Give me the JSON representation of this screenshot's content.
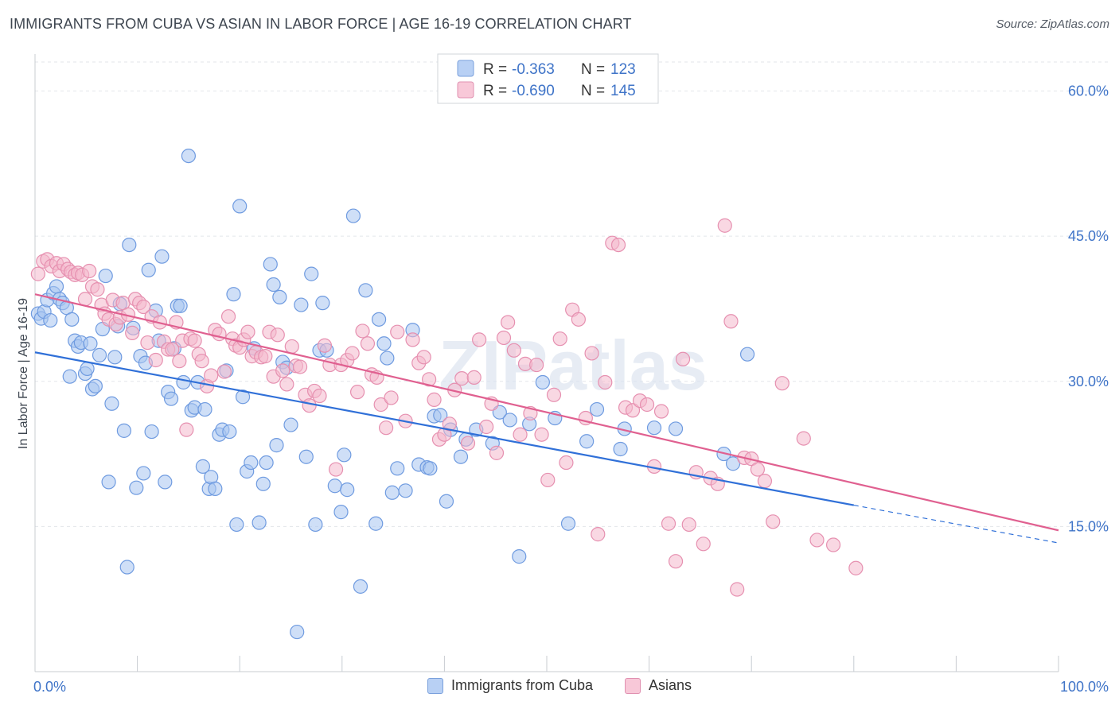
{
  "title": "IMMIGRANTS FROM CUBA VS ASIAN IN LABOR FORCE | AGE 16-19 CORRELATION CHART",
  "source": "Source: ZipAtlas.com",
  "watermark": "ZIPatlas",
  "colors": {
    "blue": "#3070d8",
    "blue_fill": "#a8c4f0",
    "pink": "#e06090",
    "pink_fill": "#f4b8cc",
    "axis_text": "#3f74c8"
  },
  "legend_box": [
    {
      "r_label": "R =",
      "r_value": "-0.363",
      "n_label": "N =",
      "n_value": "123"
    },
    {
      "r_label": "R =",
      "r_value": "-0.690",
      "n_label": "N =",
      "n_value": "145"
    }
  ],
  "chart_data": {
    "type": "scatter",
    "xlabel": "",
    "ylabel": "In Labor Force | Age 16-19",
    "xlim": [
      0,
      100
    ],
    "ylim": [
      0,
      63
    ],
    "x_tick_labels": [
      "0.0%",
      "100.0%"
    ],
    "y_ticks": [
      15,
      30,
      45,
      60
    ],
    "y_tick_labels": [
      "15.0%",
      "30.0%",
      "45.0%",
      "60.0%"
    ],
    "grid": true,
    "legend_position": "bottom",
    "series": [
      {
        "name": "Immigrants from Cuba",
        "color": "#3070d8",
        "trend": {
          "x0": 0,
          "y0": 33.0,
          "x1": 80,
          "y1": 17.2,
          "dash_to_x": 100,
          "dash_to_y": 13.3
        },
        "points": [
          [
            0.3,
            37
          ],
          [
            0.6,
            36.5
          ],
          [
            0.9,
            37.2
          ],
          [
            1.2,
            38.4
          ],
          [
            1.5,
            36.3
          ],
          [
            1.8,
            39.1
          ],
          [
            2.1,
            39.8
          ],
          [
            2.4,
            38.5
          ],
          [
            2.7,
            38.1
          ],
          [
            3.1,
            37.6
          ],
          [
            3.4,
            30.5
          ],
          [
            3.6,
            36.4
          ],
          [
            3.9,
            34.2
          ],
          [
            4.2,
            33.6
          ],
          [
            4.5,
            34.0
          ],
          [
            4.9,
            30.8
          ],
          [
            5.1,
            31.3
          ],
          [
            5.4,
            33.9
          ],
          [
            5.6,
            29.2
          ],
          [
            5.9,
            29.5
          ],
          [
            6.3,
            32.7
          ],
          [
            6.6,
            35.4
          ],
          [
            6.9,
            40.9
          ],
          [
            7.2,
            19.6
          ],
          [
            7.5,
            27.7
          ],
          [
            7.8,
            32.5
          ],
          [
            8.1,
            35.7
          ],
          [
            8.3,
            38.0
          ],
          [
            8.7,
            24.9
          ],
          [
            9.0,
            10.8
          ],
          [
            9.2,
            44.1
          ],
          [
            9.6,
            35.5
          ],
          [
            9.9,
            19.0
          ],
          [
            10.3,
            32.6
          ],
          [
            10.6,
            20.5
          ],
          [
            10.8,
            31.9
          ],
          [
            11.1,
            41.5
          ],
          [
            11.4,
            24.8
          ],
          [
            11.8,
            37.3
          ],
          [
            12.1,
            34.2
          ],
          [
            12.4,
            42.9
          ],
          [
            12.7,
            19.6
          ],
          [
            13.0,
            28.9
          ],
          [
            13.3,
            28.2
          ],
          [
            13.6,
            33.4
          ],
          [
            13.9,
            37.8
          ],
          [
            14.2,
            37.8
          ],
          [
            14.5,
            29.9
          ],
          [
            15.0,
            53.3
          ],
          [
            15.3,
            27.0
          ],
          [
            15.6,
            27.3
          ],
          [
            15.9,
            29.9
          ],
          [
            16.4,
            21.2
          ],
          [
            16.6,
            27.1
          ],
          [
            17.0,
            18.9
          ],
          [
            17.2,
            20.1
          ],
          [
            17.6,
            18.9
          ],
          [
            18.0,
            24.5
          ],
          [
            18.3,
            25.0
          ],
          [
            18.7,
            31.1
          ],
          [
            19.0,
            24.8
          ],
          [
            19.4,
            39.0
          ],
          [
            19.7,
            15.2
          ],
          [
            20.0,
            48.1
          ],
          [
            20.3,
            28.4
          ],
          [
            20.7,
            20.7
          ],
          [
            21.1,
            21.6
          ],
          [
            21.4,
            33.4
          ],
          [
            21.9,
            15.4
          ],
          [
            22.3,
            19.4
          ],
          [
            22.6,
            21.6
          ],
          [
            23.0,
            42.1
          ],
          [
            23.3,
            40.0
          ],
          [
            23.6,
            23.4
          ],
          [
            23.9,
            38.7
          ],
          [
            24.2,
            32.0
          ],
          [
            24.6,
            31.4
          ],
          [
            25.0,
            25.5
          ],
          [
            25.6,
            4.1
          ],
          [
            26.0,
            37.9
          ],
          [
            26.5,
            22.2
          ],
          [
            27.0,
            41.1
          ],
          [
            27.4,
            15.2
          ],
          [
            27.8,
            33.2
          ],
          [
            28.1,
            38.1
          ],
          [
            28.5,
            33.2
          ],
          [
            29.3,
            19.2
          ],
          [
            29.9,
            16.5
          ],
          [
            30.2,
            22.4
          ],
          [
            30.5,
            18.8
          ],
          [
            31.1,
            47.1
          ],
          [
            31.8,
            8.8
          ],
          [
            32.3,
            39.4
          ],
          [
            33.3,
            15.3
          ],
          [
            33.6,
            36.4
          ],
          [
            34.1,
            33.9
          ],
          [
            34.4,
            32.4
          ],
          [
            34.9,
            18.5
          ],
          [
            35.4,
            21.0
          ],
          [
            36.2,
            18.7
          ],
          [
            36.9,
            35.3
          ],
          [
            37.5,
            21.4
          ],
          [
            38.3,
            21.1
          ],
          [
            38.6,
            21.0
          ],
          [
            39.0,
            26.4
          ],
          [
            39.6,
            26.5
          ],
          [
            40.2,
            17.6
          ],
          [
            40.6,
            25.0
          ],
          [
            41.6,
            22.2
          ],
          [
            42.1,
            24.0
          ],
          [
            43.1,
            25.0
          ],
          [
            44.7,
            23.6
          ],
          [
            45.4,
            26.8
          ],
          [
            46.4,
            26.0
          ],
          [
            47.3,
            11.9
          ],
          [
            48.3,
            25.6
          ],
          [
            49.6,
            29.9
          ],
          [
            50.8,
            26.2
          ],
          [
            52.1,
            15.3
          ],
          [
            53.9,
            23.8
          ],
          [
            54.9,
            27.1
          ],
          [
            57.2,
            23.0
          ],
          [
            57.6,
            25.1
          ],
          [
            60.5,
            25.2
          ],
          [
            62.6,
            25.1
          ],
          [
            67.3,
            22.5
          ],
          [
            68.2,
            21.5
          ],
          [
            69.6,
            32.8
          ]
        ]
      },
      {
        "name": "Asians",
        "color": "#e06090",
        "trend": {
          "x0": 0,
          "y0": 39.0,
          "x1": 100,
          "y1": 14.6
        },
        "points": [
          [
            0.3,
            41.1
          ],
          [
            0.8,
            42.4
          ],
          [
            1.2,
            42.6
          ],
          [
            1.6,
            41.9
          ],
          [
            2.1,
            42.2
          ],
          [
            2.4,
            41.4
          ],
          [
            2.8,
            42.1
          ],
          [
            3.2,
            41.6
          ],
          [
            3.5,
            41.3
          ],
          [
            3.9,
            41.0
          ],
          [
            4.2,
            41.2
          ],
          [
            4.6,
            41.0
          ],
          [
            4.9,
            38.5
          ],
          [
            5.3,
            41.4
          ],
          [
            5.6,
            39.8
          ],
          [
            6.1,
            39.5
          ],
          [
            6.5,
            37.9
          ],
          [
            6.8,
            37.0
          ],
          [
            7.2,
            36.4
          ],
          [
            7.6,
            38.4
          ],
          [
            7.9,
            35.9
          ],
          [
            8.3,
            36.6
          ],
          [
            8.6,
            38.1
          ],
          [
            9.1,
            36.9
          ],
          [
            9.5,
            35.0
          ],
          [
            9.8,
            38.5
          ],
          [
            10.2,
            38.1
          ],
          [
            10.6,
            37.7
          ],
          [
            11.0,
            34.0
          ],
          [
            11.4,
            36.7
          ],
          [
            11.8,
            32.2
          ],
          [
            12.2,
            36.1
          ],
          [
            12.6,
            34.1
          ],
          [
            13.0,
            33.3
          ],
          [
            13.4,
            33.3
          ],
          [
            13.8,
            36.1
          ],
          [
            14.1,
            32.1
          ],
          [
            14.4,
            34.2
          ],
          [
            14.8,
            25.0
          ],
          [
            15.2,
            34.4
          ],
          [
            15.6,
            34.2
          ],
          [
            16.0,
            32.8
          ],
          [
            16.3,
            32.1
          ],
          [
            16.8,
            29.5
          ],
          [
            17.2,
            30.6
          ],
          [
            17.6,
            35.3
          ],
          [
            18.0,
            34.9
          ],
          [
            18.5,
            31.0
          ],
          [
            18.9,
            36.7
          ],
          [
            19.3,
            34.4
          ],
          [
            19.6,
            33.7
          ],
          [
            20.0,
            33.5
          ],
          [
            20.4,
            34.3
          ],
          [
            20.8,
            35.1
          ],
          [
            21.2,
            32.6
          ],
          [
            21.6,
            33.0
          ],
          [
            22.1,
            32.5
          ],
          [
            22.5,
            32.6
          ],
          [
            22.9,
            35.1
          ],
          [
            23.3,
            30.5
          ],
          [
            23.7,
            34.8
          ],
          [
            24.2,
            31.1
          ],
          [
            24.6,
            29.7
          ],
          [
            25.1,
            33.6
          ],
          [
            25.5,
            31.6
          ],
          [
            25.9,
            31.5
          ],
          [
            26.4,
            28.6
          ],
          [
            26.8,
            27.5
          ],
          [
            27.3,
            29.0
          ],
          [
            27.8,
            28.5
          ],
          [
            28.3,
            33.7
          ],
          [
            28.8,
            31.7
          ],
          [
            29.4,
            20.9
          ],
          [
            29.9,
            31.7
          ],
          [
            30.5,
            32.2
          ],
          [
            31.0,
            32.9
          ],
          [
            31.5,
            28.9
          ],
          [
            32.0,
            35.2
          ],
          [
            32.5,
            33.9
          ],
          [
            32.9,
            30.7
          ],
          [
            33.4,
            30.4
          ],
          [
            33.8,
            27.6
          ],
          [
            34.3,
            25.2
          ],
          [
            34.8,
            28.3
          ],
          [
            35.4,
            35.1
          ],
          [
            36.2,
            25.9
          ],
          [
            36.9,
            34.3
          ],
          [
            37.5,
            31.9
          ],
          [
            38.0,
            32.5
          ],
          [
            38.5,
            30.2
          ],
          [
            39.0,
            28.1
          ],
          [
            39.5,
            24.0
          ],
          [
            40.0,
            24.5
          ],
          [
            40.5,
            25.6
          ],
          [
            41.0,
            29.1
          ],
          [
            41.7,
            30.3
          ],
          [
            42.3,
            23.6
          ],
          [
            42.9,
            30.4
          ],
          [
            43.4,
            34.3
          ],
          [
            44.1,
            25.3
          ],
          [
            44.6,
            27.7
          ],
          [
            45.1,
            22.6
          ],
          [
            45.8,
            34.5
          ],
          [
            46.2,
            36.1
          ],
          [
            46.8,
            33.2
          ],
          [
            47.4,
            24.5
          ],
          [
            47.9,
            31.8
          ],
          [
            48.4,
            26.7
          ],
          [
            49.0,
            31.7
          ],
          [
            49.5,
            24.5
          ],
          [
            50.1,
            19.8
          ],
          [
            50.7,
            28.6
          ],
          [
            51.3,
            34.4
          ],
          [
            51.9,
            21.6
          ],
          [
            52.5,
            37.4
          ],
          [
            53.1,
            36.4
          ],
          [
            53.8,
            26.2
          ],
          [
            54.4,
            32.9
          ],
          [
            55.0,
            14.2
          ],
          [
            55.7,
            29.9
          ],
          [
            56.4,
            44.3
          ],
          [
            57.0,
            44.1
          ],
          [
            57.7,
            27.3
          ],
          [
            58.4,
            27.0
          ],
          [
            59.1,
            28.0
          ],
          [
            59.8,
            27.6
          ],
          [
            60.5,
            21.2
          ],
          [
            61.2,
            26.9
          ],
          [
            61.9,
            15.3
          ],
          [
            62.6,
            11.4
          ],
          [
            63.3,
            32.3
          ],
          [
            63.9,
            15.2
          ],
          [
            64.6,
            20.6
          ],
          [
            65.3,
            13.2
          ],
          [
            66.0,
            20.0
          ],
          [
            66.7,
            19.4
          ],
          [
            67.4,
            46.1
          ],
          [
            68.0,
            36.2
          ],
          [
            68.6,
            8.5
          ],
          [
            69.3,
            22.1
          ],
          [
            70.0,
            22.0
          ],
          [
            70.6,
            20.9
          ],
          [
            71.3,
            19.7
          ],
          [
            72.1,
            15.5
          ],
          [
            73.0,
            29.8
          ],
          [
            75.1,
            24.1
          ],
          [
            76.4,
            13.6
          ],
          [
            78.0,
            13.1
          ],
          [
            80.2,
            10.7
          ]
        ]
      }
    ]
  },
  "bottom_legend": [
    {
      "label": "Immigrants from Cuba",
      "fill": "#b8d0f4",
      "border": "#7aa0dc"
    },
    {
      "label": "Asians",
      "fill": "#f8c8d8",
      "border": "#e090b0"
    }
  ]
}
